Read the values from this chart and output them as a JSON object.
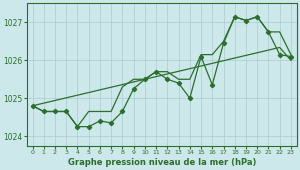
{
  "title": "Graphe pression niveau de la mer (hPa)",
  "bg_color": "#cce8ea",
  "grid_color": "#aacccc",
  "line_color": "#2d6e2d",
  "x_data": [
    0,
    1,
    2,
    3,
    4,
    5,
    6,
    7,
    8,
    9,
    10,
    11,
    12,
    13,
    14,
    15,
    16,
    17,
    18,
    19,
    20,
    21,
    22,
    23
  ],
  "y_zigzag": [
    1024.8,
    1024.65,
    1024.65,
    1024.65,
    1024.25,
    1024.25,
    1024.4,
    1024.35,
    1024.65,
    1025.25,
    1025.5,
    1025.7,
    1025.5,
    1025.4,
    1025.0,
    1026.1,
    1025.35,
    1026.45,
    1027.15,
    1027.05,
    1027.15,
    1026.75,
    1026.15,
    1026.1
  ],
  "y_upper": [
    1024.8,
    1024.65,
    1024.65,
    1024.65,
    1024.25,
    1024.65,
    1024.65,
    1024.65,
    1025.3,
    1025.5,
    1025.5,
    1025.7,
    1025.7,
    1025.5,
    1025.5,
    1026.15,
    1026.15,
    1026.5,
    1027.15,
    1027.05,
    1027.15,
    1026.75,
    1026.75,
    1026.15
  ],
  "y_linear": [
    1024.8,
    1024.87,
    1024.94,
    1025.01,
    1025.08,
    1025.15,
    1025.22,
    1025.29,
    1025.36,
    1025.43,
    1025.5,
    1025.57,
    1025.64,
    1025.71,
    1025.78,
    1025.85,
    1025.92,
    1025.99,
    1026.06,
    1026.13,
    1026.2,
    1026.27,
    1026.34,
    1026.0
  ],
  "ylim": [
    1023.75,
    1027.5
  ],
  "yticks": [
    1024,
    1025,
    1026,
    1027
  ],
  "xlim": [
    -0.5,
    23.5
  ],
  "xticks": [
    0,
    1,
    2,
    3,
    4,
    5,
    6,
    7,
    8,
    9,
    10,
    11,
    12,
    13,
    14,
    15,
    16,
    17,
    18,
    19,
    20,
    21,
    22,
    23
  ]
}
